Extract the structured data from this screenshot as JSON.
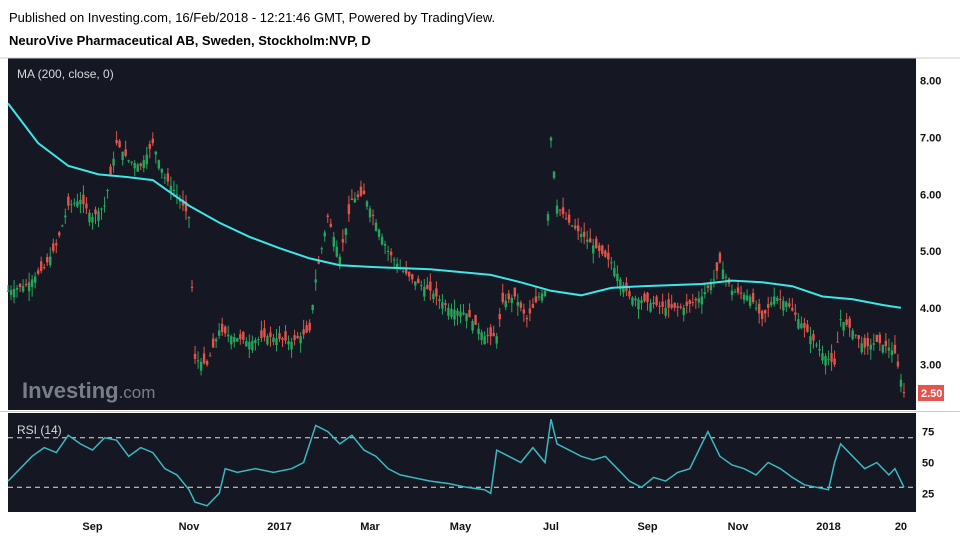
{
  "header": {
    "published": "Published on Investing.com, 16/Feb/2018 - 12:21:46 GMT, Powered by TradingView.",
    "symbol_line": "NeuroVive Pharmaceutical AB, Sweden, Stockholm:NVP, D"
  },
  "watermark": {
    "brand": "Investing",
    "suffix": ".com"
  },
  "colors": {
    "background": "#151823",
    "up": "#26a65b",
    "down": "#e5534b",
    "ma": "#3ee6e8",
    "rsi": "#3bb8c0",
    "axis_text": "#111111",
    "last_price_bg": "#e5534b"
  },
  "chart_data": [
    {
      "type": "candlestick",
      "indicator_label": "MA (200, close, 0)",
      "price_axis_ticks": [
        "3.00",
        "4.00",
        "5.00",
        "6.00",
        "7.00",
        "8.00"
      ],
      "ylim": [
        2.2,
        8.4
      ],
      "last_price_label": "2.50",
      "last_price": 2.5,
      "price_path": [
        [
          0,
          4.3
        ],
        [
          3,
          4.4
        ],
        [
          6,
          4.7
        ],
        [
          8,
          5.1
        ],
        [
          10,
          5.8
        ],
        [
          12,
          5.9
        ],
        [
          14,
          5.6
        ],
        [
          16,
          5.8
        ],
        [
          18,
          6.9
        ],
        [
          20,
          6.6
        ],
        [
          22,
          6.5
        ],
        [
          24,
          6.9
        ],
        [
          26,
          6.3
        ],
        [
          28,
          6.0
        ],
        [
          30,
          5.6
        ],
        [
          31,
          3.1
        ],
        [
          33,
          3.0
        ],
        [
          35,
          3.6
        ],
        [
          37,
          3.5
        ],
        [
          40,
          3.4
        ],
        [
          43,
          3.5
        ],
        [
          47,
          3.4
        ],
        [
          50,
          3.6
        ],
        [
          51,
          4.5
        ],
        [
          53,
          5.6
        ],
        [
          55,
          4.9
        ],
        [
          57,
          5.9
        ],
        [
          59,
          6.0
        ],
        [
          61,
          5.5
        ],
        [
          63,
          5.0
        ],
        [
          65,
          4.7
        ],
        [
          67,
          4.5
        ],
        [
          70,
          4.3
        ],
        [
          73,
          4.0
        ],
        [
          76,
          3.9
        ],
        [
          79,
          3.5
        ],
        [
          81,
          3.5
        ],
        [
          82,
          4.1
        ],
        [
          84,
          4.2
        ],
        [
          86,
          3.8
        ],
        [
          88,
          4.2
        ],
        [
          89,
          4.3
        ],
        [
          90,
          7.0
        ],
        [
          91,
          5.8
        ],
        [
          93,
          5.5
        ],
        [
          96,
          5.2
        ],
        [
          100,
          4.8
        ],
        [
          103,
          4.2
        ],
        [
          106,
          4.1
        ],
        [
          109,
          4.0
        ],
        [
          112,
          4.0
        ],
        [
          115,
          4.2
        ],
        [
          117,
          4.5
        ],
        [
          118,
          4.8
        ],
        [
          120,
          4.3
        ],
        [
          123,
          4.2
        ],
        [
          125,
          3.8
        ],
        [
          127,
          4.2
        ],
        [
          129,
          4.1
        ],
        [
          131,
          3.8
        ],
        [
          133,
          3.5
        ],
        [
          135,
          3.2
        ],
        [
          137,
          3.0
        ],
        [
          138,
          3.8
        ],
        [
          140,
          3.6
        ],
        [
          142,
          3.3
        ],
        [
          144,
          3.4
        ],
        [
          146,
          3.3
        ],
        [
          147,
          3.2
        ],
        [
          148.5,
          2.5
        ]
      ],
      "ma_path": [
        [
          0,
          7.6
        ],
        [
          5,
          6.9
        ],
        [
          10,
          6.5
        ],
        [
          15,
          6.35
        ],
        [
          20,
          6.3
        ],
        [
          24,
          6.25
        ],
        [
          30,
          5.8
        ],
        [
          35,
          5.5
        ],
        [
          40,
          5.25
        ],
        [
          45,
          5.05
        ],
        [
          50,
          4.87
        ],
        [
          55,
          4.75
        ],
        [
          60,
          4.72
        ],
        [
          70,
          4.68
        ],
        [
          80,
          4.58
        ],
        [
          85,
          4.45
        ],
        [
          90,
          4.3
        ],
        [
          95,
          4.22
        ],
        [
          100,
          4.35
        ],
        [
          105,
          4.38
        ],
        [
          110,
          4.4
        ],
        [
          115,
          4.42
        ],
        [
          120,
          4.48
        ],
        [
          125,
          4.45
        ],
        [
          130,
          4.38
        ],
        [
          135,
          4.2
        ],
        [
          140,
          4.15
        ],
        [
          145,
          4.05
        ],
        [
          148,
          4.0
        ]
      ]
    },
    {
      "type": "line",
      "indicator_label": "RSI (14)",
      "rsi_axis_ticks": [
        "25",
        "50",
        "75"
      ],
      "ylim": [
        10,
        90
      ],
      "bands": [
        30,
        70
      ],
      "rsi_path": [
        [
          0,
          35
        ],
        [
          2,
          45
        ],
        [
          4,
          55
        ],
        [
          6,
          62
        ],
        [
          8,
          58
        ],
        [
          10,
          72
        ],
        [
          12,
          65
        ],
        [
          14,
          60
        ],
        [
          16,
          70
        ],
        [
          18,
          68
        ],
        [
          20,
          55
        ],
        [
          22,
          62
        ],
        [
          24,
          58
        ],
        [
          26,
          45
        ],
        [
          28,
          40
        ],
        [
          30,
          28
        ],
        [
          31,
          18
        ],
        [
          33,
          15
        ],
        [
          35,
          25
        ],
        [
          36,
          45
        ],
        [
          38,
          42
        ],
        [
          41,
          45
        ],
        [
          44,
          42
        ],
        [
          47,
          45
        ],
        [
          49,
          50
        ],
        [
          50,
          65
        ],
        [
          51,
          80
        ],
        [
          53,
          75
        ],
        [
          55,
          65
        ],
        [
          57,
          72
        ],
        [
          59,
          60
        ],
        [
          61,
          55
        ],
        [
          63,
          45
        ],
        [
          65,
          40
        ],
        [
          67,
          38
        ],
        [
          70,
          35
        ],
        [
          73,
          33
        ],
        [
          76,
          30
        ],
        [
          79,
          28
        ],
        [
          80,
          25
        ],
        [
          81,
          60
        ],
        [
          83,
          55
        ],
        [
          85,
          50
        ],
        [
          87,
          62
        ],
        [
          89,
          50
        ],
        [
          90,
          85
        ],
        [
          91,
          65
        ],
        [
          93,
          60
        ],
        [
          95,
          55
        ],
        [
          97,
          52
        ],
        [
          99,
          55
        ],
        [
          101,
          45
        ],
        [
          103,
          35
        ],
        [
          105,
          30
        ],
        [
          107,
          38
        ],
        [
          109,
          35
        ],
        [
          111,
          42
        ],
        [
          113,
          45
        ],
        [
          115,
          65
        ],
        [
          116,
          75
        ],
        [
          118,
          55
        ],
        [
          120,
          48
        ],
        [
          122,
          45
        ],
        [
          124,
          40
        ],
        [
          126,
          50
        ],
        [
          128,
          45
        ],
        [
          130,
          38
        ],
        [
          132,
          32
        ],
        [
          134,
          30
        ],
        [
          136,
          28
        ],
        [
          137,
          50
        ],
        [
          138,
          65
        ],
        [
          140,
          55
        ],
        [
          142,
          45
        ],
        [
          144,
          50
        ],
        [
          146,
          40
        ],
        [
          147,
          45
        ],
        [
          148.5,
          30
        ]
      ]
    }
  ],
  "x_axis_labels": [
    {
      "label": "Sep",
      "t": 14
    },
    {
      "label": "Nov",
      "t": 30
    },
    {
      "label": "2017",
      "t": 45
    },
    {
      "label": "Mar",
      "t": 60
    },
    {
      "label": "May",
      "t": 75
    },
    {
      "label": "Jul",
      "t": 90
    },
    {
      "label": "Sep",
      "t": 106
    },
    {
      "label": "Nov",
      "t": 121
    },
    {
      "label": "2018",
      "t": 136
    },
    {
      "label": "20",
      "t": 148
    }
  ]
}
